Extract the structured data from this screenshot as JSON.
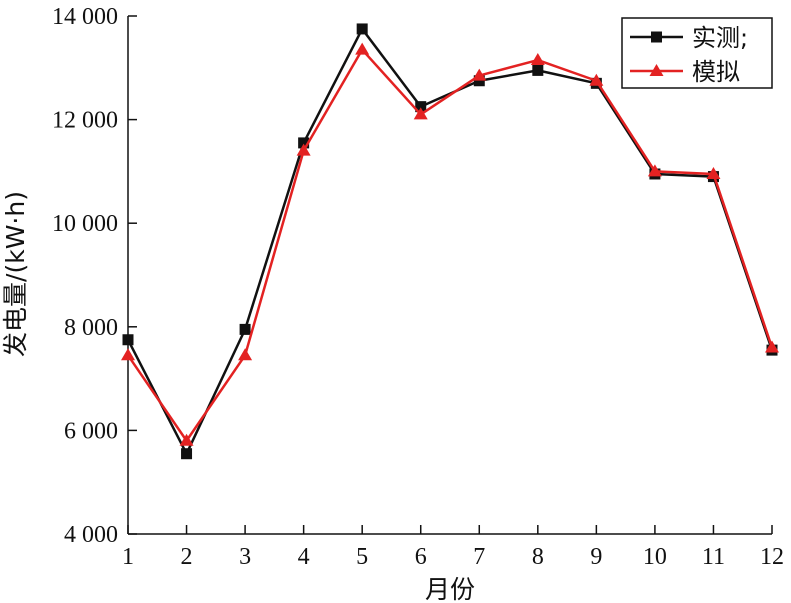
{
  "chart_data": {
    "type": "line",
    "title": "",
    "xlabel": "月份",
    "ylabel": "发电量/(kW·h)",
    "x": [
      1,
      2,
      3,
      4,
      5,
      6,
      7,
      8,
      9,
      10,
      11,
      12
    ],
    "x_tick_labels": [
      "1",
      "2",
      "3",
      "4",
      "5",
      "6",
      "7",
      "8",
      "9",
      "10",
      "11",
      "12"
    ],
    "xlim": [
      1,
      12
    ],
    "ylim": [
      4000,
      14000
    ],
    "y_ticks": [
      4000,
      6000,
      8000,
      10000,
      12000,
      14000
    ],
    "y_tick_labels": [
      "4 000",
      "6 000",
      "8 000",
      "10 000",
      "12 000",
      "14 000"
    ],
    "grid": false,
    "legend_position": "top-right",
    "series": [
      {
        "name": "实测;",
        "color": "#111111",
        "marker": "square",
        "values": [
          7750,
          5550,
          7950,
          11550,
          13750,
          12250,
          12750,
          12950,
          12700,
          10950,
          10900,
          7550
        ]
      },
      {
        "name": "模拟",
        "color": "#e32222",
        "marker": "triangle",
        "values": [
          7450,
          5800,
          7450,
          11400,
          13350,
          12100,
          12850,
          13150,
          12750,
          11000,
          10950,
          7600
        ]
      }
    ]
  }
}
